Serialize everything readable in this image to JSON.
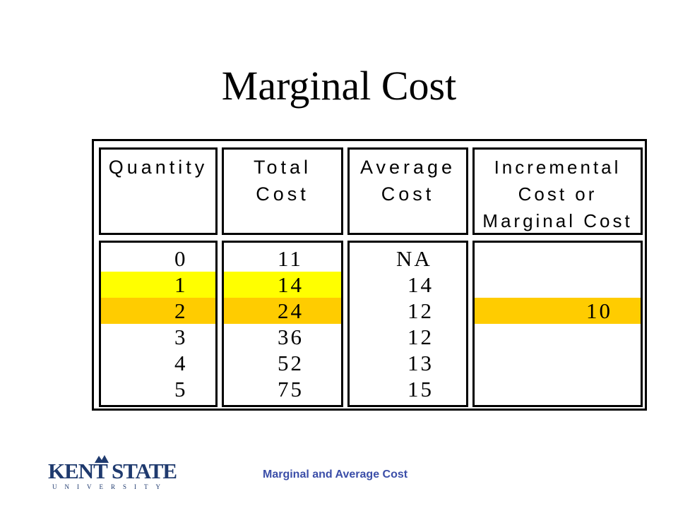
{
  "slide": {
    "title": "Marginal Cost",
    "footer": "Marginal and Average Cost"
  },
  "logo": {
    "wordmark": "KENT STATE",
    "subtitle": "UNIVERSITY"
  },
  "table": {
    "headers": {
      "quantity": [
        "Quantity"
      ],
      "total_cost": [
        "Total",
        "Cost"
      ],
      "average_cost": [
        "Average",
        "Cost"
      ],
      "marginal_cost": [
        "Incremental",
        "Cost or",
        "Marginal Cost"
      ]
    },
    "quantity": [
      "0",
      "1",
      "2",
      "3",
      "4",
      "5"
    ],
    "total_cost": [
      "11",
      "14",
      "24",
      "36",
      "52",
      "75"
    ],
    "average_cost": [
      "NA",
      "14",
      "12",
      "12",
      "13",
      "15"
    ],
    "marginal_cost": [
      "",
      "",
      "10",
      "",
      "",
      ""
    ]
  },
  "colors": {
    "highlight_row_1": "#ffff00",
    "highlight_row_2": "#ffcc00",
    "footer_text": "#3b4ea8"
  }
}
